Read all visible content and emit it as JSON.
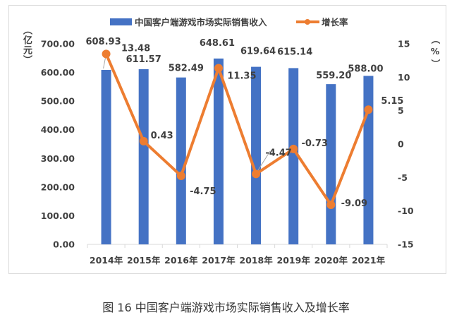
{
  "chart_data": {
    "type": "bar+line",
    "categories": [
      "2014年",
      "2015年",
      "2016年",
      "2017年",
      "2018年",
      "2019年",
      "2020年",
      "2021年"
    ],
    "series": [
      {
        "name": "中国客户端游戏市场实际销售收入",
        "type": "bar",
        "axis": "left",
        "color": "#4472C4",
        "values": [
          608.93,
          611.57,
          582.49,
          648.61,
          619.64,
          615.14,
          559.2,
          588.0
        ],
        "labels": [
          "608.93",
          "611.57",
          "582.49",
          "648.61",
          "619.64",
          "615.14",
          "559.20",
          "588.00"
        ]
      },
      {
        "name": "增长率",
        "type": "line",
        "axis": "right",
        "color": "#ED7D31",
        "values": [
          13.48,
          0.43,
          -4.75,
          11.35,
          -4.47,
          -0.73,
          -9.09,
          5.15
        ],
        "labels": [
          "13.48",
          "0.43",
          "-4.75",
          "11.35",
          "-4.47",
          "-0.73",
          "-9.09",
          "5.15"
        ]
      }
    ],
    "left_axis": {
      "label": "（亿元）",
      "ylim": [
        0,
        700
      ],
      "ticks": [
        "0.00",
        "100.00",
        "200.00",
        "300.00",
        "400.00",
        "500.00",
        "600.00",
        "700.00"
      ]
    },
    "right_axis": {
      "label": "（%）",
      "ylim": [
        -15,
        15
      ],
      "ticks": [
        "-15",
        "-10",
        "-5",
        "0",
        "5",
        "10",
        "15"
      ]
    },
    "legend": "top",
    "grid": false
  },
  "caption": "图 16 中国客户端游戏市场实际销售收入及增长率"
}
